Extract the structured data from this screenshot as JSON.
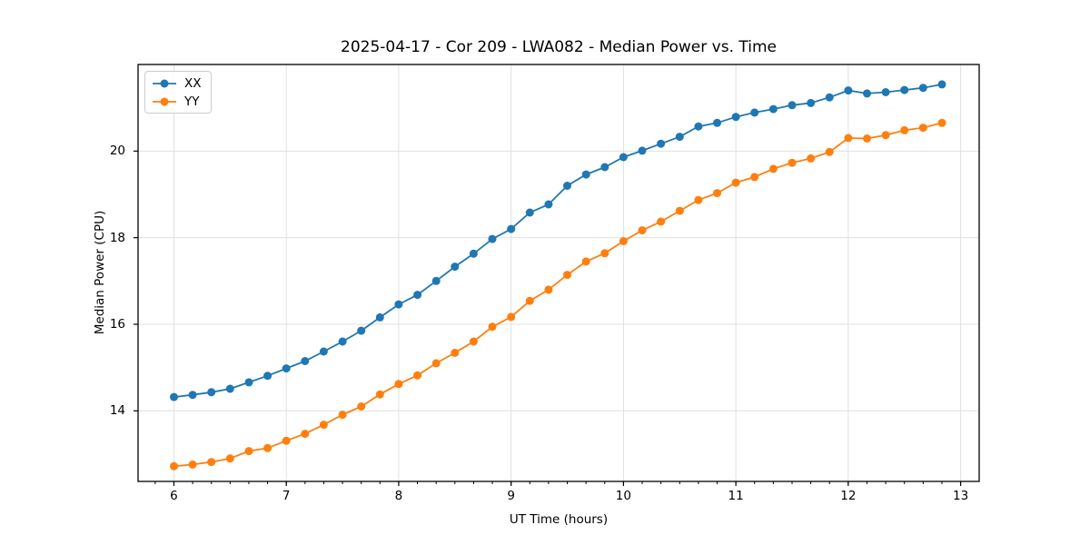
{
  "chart_data": {
    "type": "line",
    "title": "2025-04-17 - Cor 209 - LWA082 - Median Power vs. Time",
    "xlabel": "UT Time (hours)",
    "ylabel": "Median Power (CPU)",
    "xlim": [
      5.681,
      13.165
    ],
    "ylim": [
      12.37,
      22.0
    ],
    "x_ticks": [
      6,
      7,
      8,
      9,
      10,
      11,
      12,
      13
    ],
    "y_ticks": [
      14,
      16,
      18,
      20
    ],
    "x_minor_tick_step": 0.166667,
    "grid": true,
    "grid_color": "#e0e0e0",
    "legend_position": "upper-left",
    "x": [
      6.0,
      6.1667,
      6.3333,
      6.5,
      6.6667,
      6.8333,
      7.0,
      7.1667,
      7.3333,
      7.5,
      7.6667,
      7.8333,
      8.0,
      8.1667,
      8.3333,
      8.5,
      8.6667,
      8.8333,
      9.0,
      9.1667,
      9.3333,
      9.5,
      9.6667,
      9.8333,
      10.0,
      10.1667,
      10.3333,
      10.5,
      10.6667,
      10.8333,
      11.0,
      11.1667,
      11.3333,
      11.5,
      11.6667,
      11.8333,
      12.0,
      12.1667,
      12.3333,
      12.5,
      12.6667,
      12.8333
    ],
    "series": [
      {
        "name": "XX",
        "color": "#1f77b4",
        "values": [
          14.32,
          14.37,
          14.43,
          14.51,
          14.66,
          14.81,
          14.98,
          15.15,
          15.37,
          15.6,
          15.85,
          16.16,
          16.46,
          16.68,
          17.0,
          17.33,
          17.63,
          17.97,
          18.2,
          18.58,
          18.77,
          19.2,
          19.46,
          19.63,
          19.86,
          20.01,
          20.17,
          20.33,
          20.57,
          20.65,
          20.79,
          20.89,
          20.97,
          21.06,
          21.11,
          21.24,
          21.4,
          21.33,
          21.36,
          21.41,
          21.46,
          21.54
        ]
      },
      {
        "name": "YY",
        "color": "#ff7f0e",
        "values": [
          12.72,
          12.76,
          12.82,
          12.9,
          13.07,
          13.14,
          13.31,
          13.47,
          13.68,
          13.91,
          14.1,
          14.38,
          14.62,
          14.82,
          15.1,
          15.34,
          15.6,
          15.94,
          16.17,
          16.54,
          16.8,
          17.14,
          17.45,
          17.64,
          17.92,
          18.17,
          18.37,
          18.62,
          18.87,
          19.03,
          19.27,
          19.4,
          19.59,
          19.73,
          19.83,
          19.98,
          20.3,
          20.29,
          20.37,
          20.48,
          20.54,
          20.65
        ]
      }
    ]
  }
}
